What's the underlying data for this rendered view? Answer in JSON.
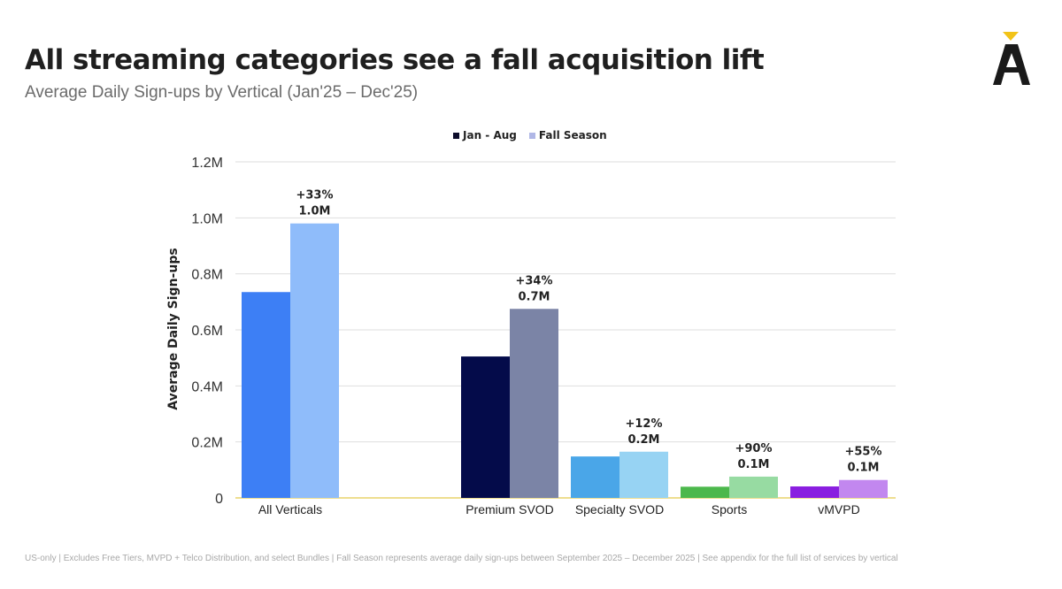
{
  "header": {
    "title": "All streaming categories see a fall acquisition lift",
    "subtitle": "Average Daily Sign-ups by Vertical (Jan'25 – Dec'25)"
  },
  "brand": {
    "logo_letter": "A",
    "accent": "#f2c318",
    "color": "#1a1a1a"
  },
  "footnote": "US-only | Excludes Free Tiers, MVPD + Telco Distribution, and select Bundles | Fall Season represents average daily sign-ups between September 2025 – December 2025 | See appendix for the full list of services by vertical",
  "chart_data": {
    "type": "bar",
    "ylabel": "Average Daily Sign-ups",
    "xlabel": "",
    "ylim": [
      0,
      1.2
    ],
    "yticks": [
      {
        "value": 0,
        "label": "0"
      },
      {
        "value": 0.2,
        "label": "0.2M"
      },
      {
        "value": 0.4,
        "label": "0.4M"
      },
      {
        "value": 0.6,
        "label": "0.6M"
      },
      {
        "value": 0.8,
        "label": "0.8M"
      },
      {
        "value": 1.0,
        "label": "1.0M"
      },
      {
        "value": 1.2,
        "label": "1.2M"
      }
    ],
    "grid": true,
    "legend_position": "top-center",
    "series": [
      {
        "name": "Jan - Aug",
        "legend_color": "#0d0d2b"
      },
      {
        "name": "Fall Season",
        "legend_color": "#b0b7e6"
      }
    ],
    "categories": [
      {
        "label": "All Verticals",
        "values": [
          0.735,
          0.98
        ],
        "colors": [
          "#3d7ff5",
          "#8fbcfa"
        ],
        "annotation": {
          "pct": "+33%",
          "value": "1.0M"
        }
      },
      {
        "label": "Premium SVOD",
        "values": [
          0.505,
          0.675
        ],
        "colors": [
          "#040b4a",
          "#7b84a6"
        ],
        "annotation": {
          "pct": "+34%",
          "value": "0.7M"
        }
      },
      {
        "label": "Specialty SVOD",
        "values": [
          0.148,
          0.165
        ],
        "colors": [
          "#4aa6e8",
          "#97d3f3"
        ],
        "annotation": {
          "pct": "+12%",
          "value": "0.2M"
        }
      },
      {
        "label": "Sports",
        "values": [
          0.04,
          0.076
        ],
        "colors": [
          "#4cb84c",
          "#97dba2"
        ],
        "annotation": {
          "pct": "+90%",
          "value": "0.1M"
        }
      },
      {
        "label": "vMVPD",
        "values": [
          0.041,
          0.064
        ],
        "colors": [
          "#8a1ee0",
          "#c287ef"
        ],
        "annotation": {
          "pct": "+55%",
          "value": "0.1M"
        }
      }
    ],
    "baseline_color": "#e8d36a",
    "gridline_color": "#dedede"
  }
}
